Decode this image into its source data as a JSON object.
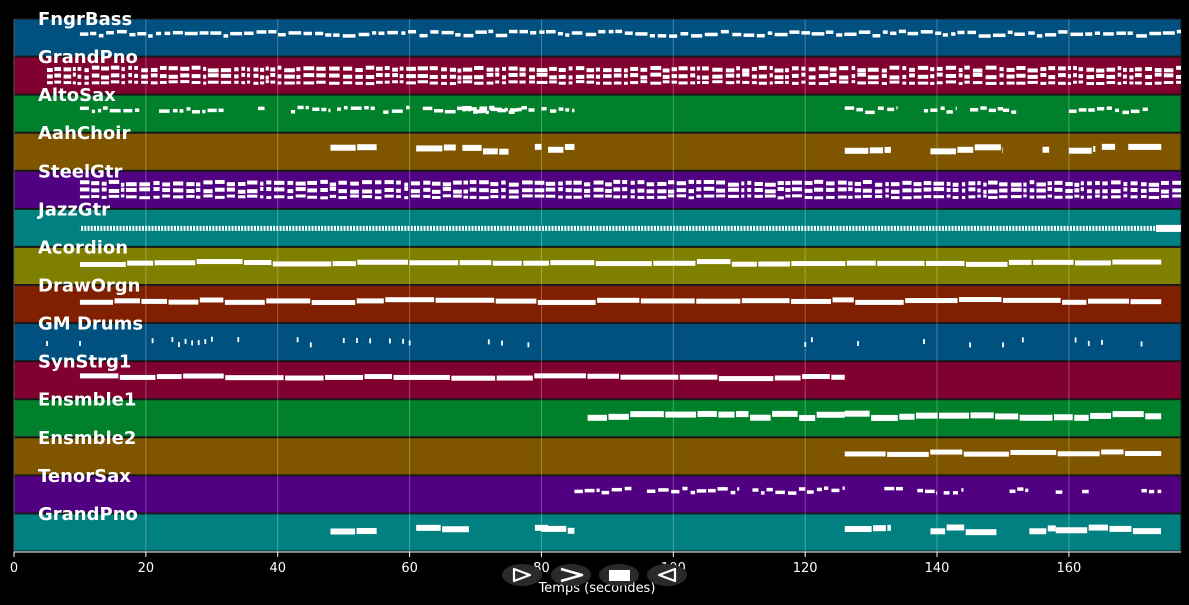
{
  "chart_data": {
    "type": "piano-roll",
    "xlabel": "Temps (secondes)",
    "xlim": [
      0,
      177
    ],
    "xticks": [
      0,
      20,
      40,
      60,
      80,
      100,
      120,
      140,
      160
    ],
    "grid": true,
    "tracks": [
      {
        "name": "FngrBass",
        "color": "#005080",
        "style": "bass",
        "segments": [
          [
            10,
            177
          ]
        ]
      },
      {
        "name": "GrandPno",
        "color": "#800030",
        "style": "dense",
        "segments": [
          [
            5,
            177
          ]
        ]
      },
      {
        "name": "AltoSax",
        "color": "#00802a",
        "style": "phrase",
        "segments": [
          [
            10,
            19
          ],
          [
            22,
            32
          ],
          [
            37,
            38
          ],
          [
            42,
            48
          ],
          [
            49,
            55
          ],
          [
            56,
            60
          ],
          [
            62,
            68
          ],
          [
            68,
            74
          ],
          [
            68,
            77
          ],
          [
            68,
            79
          ],
          [
            80,
            85
          ],
          [
            126,
            134
          ],
          [
            138,
            143
          ],
          [
            145,
            150
          ],
          [
            150,
            152
          ],
          [
            160,
            167
          ],
          [
            167,
            172
          ]
        ]
      },
      {
        "name": "AahChoir",
        "color": "#805500",
        "style": "chord",
        "segments": [
          [
            48,
            55
          ],
          [
            61,
            67
          ],
          [
            68,
            75
          ],
          [
            79,
            80
          ],
          [
            81,
            85
          ],
          [
            126,
            133
          ],
          [
            139,
            150
          ],
          [
            156,
            157
          ],
          [
            160,
            164
          ],
          [
            165,
            167
          ],
          [
            169,
            174
          ]
        ]
      },
      {
        "name": "SteelGtr",
        "color": "#500080",
        "style": "dense",
        "segments": [
          [
            10,
            177
          ]
        ]
      },
      {
        "name": "JazzGtr",
        "color": "#008080",
        "style": "comb",
        "segments": [
          [
            10,
            177
          ]
        ]
      },
      {
        "name": "Acordion",
        "color": "#808000",
        "style": "sustain",
        "segments": [
          [
            10,
            174
          ]
        ]
      },
      {
        "name": "DrawOrgn",
        "color": "#802000",
        "style": "sustain",
        "segments": [
          [
            10,
            174
          ]
        ]
      },
      {
        "name": "GM Drums",
        "color": "#005080",
        "style": "hits",
        "segments": [
          [
            5,
            5
          ],
          [
            10,
            10
          ],
          [
            21,
            21
          ],
          [
            24,
            25
          ],
          [
            26,
            27
          ],
          [
            28,
            29
          ],
          [
            30,
            30
          ],
          [
            34,
            34
          ],
          [
            43,
            43
          ],
          [
            45,
            45
          ],
          [
            50,
            50
          ],
          [
            52,
            52
          ],
          [
            54,
            54
          ],
          [
            57,
            57
          ],
          [
            59,
            60
          ],
          [
            72,
            72
          ],
          [
            74,
            74
          ],
          [
            78,
            78
          ],
          [
            120,
            121
          ],
          [
            128,
            128
          ],
          [
            138,
            138
          ],
          [
            145,
            145
          ],
          [
            150,
            150
          ],
          [
            153,
            153
          ],
          [
            161,
            161
          ],
          [
            163,
            163
          ],
          [
            165,
            165
          ],
          [
            171,
            171
          ]
        ]
      },
      {
        "name": "SynStrg1",
        "color": "#800030",
        "style": "sustain",
        "segments": [
          [
            10,
            126
          ]
        ]
      },
      {
        "name": "Ensmble1",
        "color": "#00802a",
        "style": "chord",
        "segments": [
          [
            87,
            126
          ],
          [
            126,
            174
          ]
        ]
      },
      {
        "name": "Ensmble2",
        "color": "#805500",
        "style": "sustain",
        "segments": [
          [
            126,
            174
          ]
        ]
      },
      {
        "name": "TenorSax",
        "color": "#500080",
        "style": "phrase",
        "segments": [
          [
            85,
            94
          ],
          [
            96,
            110
          ],
          [
            112,
            126
          ],
          [
            132,
            135
          ],
          [
            137,
            140
          ],
          [
            141,
            144
          ],
          [
            151,
            154
          ],
          [
            158,
            159
          ],
          [
            162,
            163
          ],
          [
            171,
            174
          ]
        ]
      },
      {
        "name": "GrandPno",
        "color": "#008080",
        "style": "chord",
        "segments": [
          [
            48,
            55
          ],
          [
            61,
            69
          ],
          [
            79,
            81
          ],
          [
            80,
            85
          ],
          [
            126,
            133
          ],
          [
            139,
            149
          ],
          [
            154,
            158
          ],
          [
            158,
            163
          ],
          [
            163,
            174
          ]
        ]
      }
    ]
  },
  "controls": {
    "buttons": [
      {
        "name": "play-button",
        "icon": "play-outline-icon"
      },
      {
        "name": "forward-button",
        "icon": "chevron-right-icon"
      },
      {
        "name": "stop-button",
        "icon": "stop-square-icon"
      },
      {
        "name": "reverse-button",
        "icon": "play-reverse-icon"
      }
    ]
  }
}
